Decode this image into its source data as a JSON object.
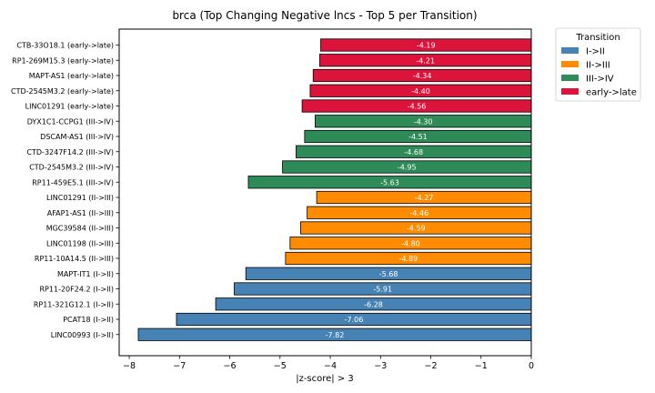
{
  "chart_data": {
    "type": "bar",
    "orientation": "horizontal",
    "title": "brca (Top Changing Negative lncs - Top 5 per Transition)",
    "xlabel": "|z-score| > 3",
    "ylabel": "",
    "xlim": [
      -8.2,
      0
    ],
    "xticks": [
      -8,
      -7,
      -6,
      -5,
      -4,
      -3,
      -2,
      -1,
      0
    ],
    "grid": false,
    "legend": {
      "title": "Transition",
      "placement": "outside-top-right",
      "entries": [
        {
          "name": "I->II",
          "color": "#4682b4"
        },
        {
          "name": "II->III",
          "color": "#ff8c00"
        },
        {
          "name": "III->IV",
          "color": "#2e8b57"
        },
        {
          "name": "early->late",
          "color": "#dc143c"
        }
      ]
    },
    "bars": [
      {
        "label": "CTB-33O18.1 (early->late)",
        "value": -4.19,
        "value_label": "-4.19",
        "group": "early->late"
      },
      {
        "label": "RP1-269M15.3 (early->late)",
        "value": -4.21,
        "value_label": "-4.21",
        "group": "early->late"
      },
      {
        "label": "MAPT-AS1 (early->late)",
        "value": -4.34,
        "value_label": "-4.34",
        "group": "early->late"
      },
      {
        "label": "CTD-2545M3.2 (early->late)",
        "value": -4.4,
        "value_label": "-4.40",
        "group": "early->late"
      },
      {
        "label": "LINC01291 (early->late)",
        "value": -4.56,
        "value_label": "-4.56",
        "group": "early->late"
      },
      {
        "label": "DYX1C1-CCPG1 (III->IV)",
        "value": -4.3,
        "value_label": "-4.30",
        "group": "III->IV"
      },
      {
        "label": "DSCAM-AS1 (III->IV)",
        "value": -4.51,
        "value_label": "-4.51",
        "group": "III->IV"
      },
      {
        "label": "CTD-3247F14.2 (III->IV)",
        "value": -4.68,
        "value_label": "-4.68",
        "group": "III->IV"
      },
      {
        "label": "CTD-2545M3.2 (III->IV)",
        "value": -4.95,
        "value_label": "-4.95",
        "group": "III->IV"
      },
      {
        "label": "RP11-459E5.1 (III->IV)",
        "value": -5.63,
        "value_label": "-5.63",
        "group": "III->IV"
      },
      {
        "label": "LINC01291 (II->III)",
        "value": -4.27,
        "value_label": "-4.27",
        "group": "II->III"
      },
      {
        "label": "AFAP1-AS1 (II->III)",
        "value": -4.46,
        "value_label": "-4.46",
        "group": "II->III"
      },
      {
        "label": "MGC39584 (II->III)",
        "value": -4.59,
        "value_label": "-4.59",
        "group": "II->III"
      },
      {
        "label": "LINC01198 (II->III)",
        "value": -4.8,
        "value_label": "-4.80",
        "group": "II->III"
      },
      {
        "label": "RP11-10A14.5 (II->III)",
        "value": -4.89,
        "value_label": "-4.89",
        "group": "II->III"
      },
      {
        "label": "MAPT-IT1 (I->II)",
        "value": -5.68,
        "value_label": "-5.68",
        "group": "I->II"
      },
      {
        "label": "RP11-20F24.2 (I->II)",
        "value": -5.91,
        "value_label": "-5.91",
        "group": "I->II"
      },
      {
        "label": "RP11-321G12.1 (I->II)",
        "value": -6.28,
        "value_label": "-6.28",
        "group": "I->II"
      },
      {
        "label": "PCAT18 (I->II)",
        "value": -7.06,
        "value_label": "-7.06",
        "group": "I->II"
      },
      {
        "label": "LINC00993 (I->II)",
        "value": -7.82,
        "value_label": "-7.82",
        "group": "I->II"
      }
    ]
  }
}
